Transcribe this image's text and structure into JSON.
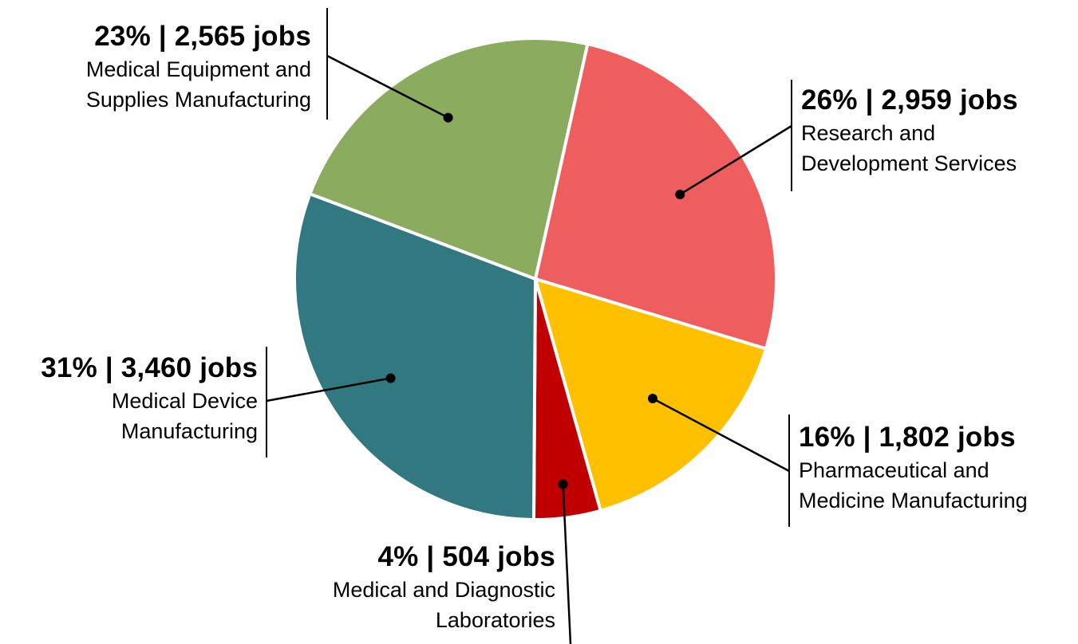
{
  "chart_data": {
    "type": "pie",
    "slices": [
      {
        "label": "Research and Development Services",
        "percent": 26,
        "jobs": 2959,
        "color": "#EF5E5F",
        "headline": "26% | 2,959 jobs",
        "desc_lines": [
          "Research and",
          "Development Services"
        ]
      },
      {
        "label": "Pharmaceutical and Medicine Manufacturing",
        "percent": 16,
        "jobs": 1802,
        "color": "#FFC000",
        "headline": "16% | 1,802 jobs",
        "desc_lines": [
          "Pharmaceutical and",
          "Medicine Manufacturing"
        ]
      },
      {
        "label": "Medical and Diagnostic Laboratories",
        "percent": 4,
        "jobs": 504,
        "color": "#C00000",
        "headline": "4% | 504 jobs",
        "desc_lines": [
          "Medical and Diagnostic",
          "Laboratories"
        ]
      },
      {
        "label": "Medical Device Manufacturing",
        "percent": 31,
        "jobs": 3460,
        "color": "#317880",
        "headline": "31% | 3,460 jobs",
        "desc_lines": [
          "Medical Device",
          "Manufacturing"
        ]
      },
      {
        "label": "Medical Equipment and Supplies Manufacturing",
        "percent": 23,
        "jobs": 2565,
        "color": "#8BAB5E",
        "headline": "23% | 2,565 jobs",
        "desc_lines": [
          "Medical Equipment and",
          "Supplies Manufacturing"
        ]
      }
    ]
  }
}
